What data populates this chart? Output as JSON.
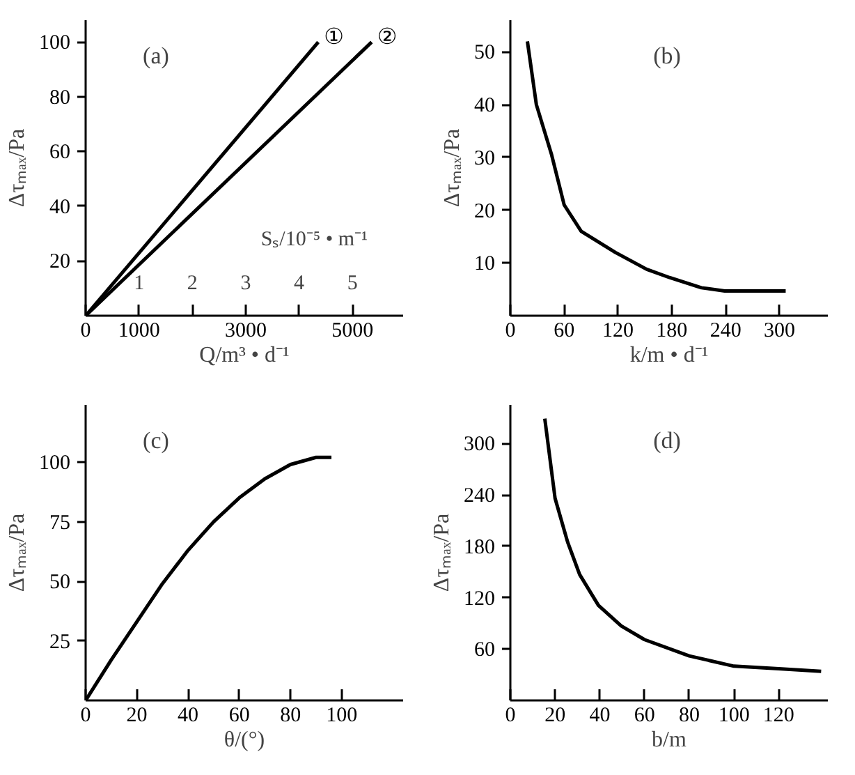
{
  "chart_data": [
    {
      "type": "line",
      "title": "(a)",
      "xlabel": "Q/m³ • d⁻¹",
      "ylabel": "Δτₘₐₓ/Pa",
      "x2label": "Sₛ/10⁻⁵ • m⁻¹",
      "xlim": [
        0,
        5950
      ],
      "ylim": [
        0,
        108
      ],
      "x2lim": [
        0,
        5.95
      ],
      "xticks": [
        0,
        1000,
        {
          "value": 2000,
          "label": null
        },
        3000,
        {
          "value": 4000,
          "label": null
        },
        5000
      ],
      "yticks": [
        20,
        40,
        60,
        80,
        100
      ],
      "x2ticks": [
        1,
        2,
        3,
        4,
        5
      ],
      "series": [
        {
          "name": "①",
          "color": "#000000",
          "x": [
            0,
            4360
          ],
          "values": [
            0,
            100
          ]
        },
        {
          "name": "②",
          "color": "#000000",
          "x": [
            0,
            5360
          ],
          "values": [
            0,
            100
          ]
        }
      ],
      "grid": false
    },
    {
      "type": "line",
      "title": "(b)",
      "xlabel": "k/m • d⁻¹",
      "ylabel": "Δτₘₐₓ/Pa",
      "xlim": [
        0,
        354
      ],
      "ylim": [
        0,
        56
      ],
      "xticks": [
        0,
        60,
        120,
        180,
        240,
        300
      ],
      "yticks": [
        10,
        20,
        30,
        40,
        50
      ],
      "series": [
        {
          "color": "#000000",
          "x": [
            19,
            29,
            46,
            60,
            79,
            117,
            152,
            178,
            213,
            239,
            274,
            307
          ],
          "values": [
            52,
            40,
            30.5,
            21,
            16,
            12,
            8.8,
            7.2,
            5.3,
            4.7,
            4.7,
            4.7
          ]
        }
      ],
      "grid": false
    },
    {
      "type": "line",
      "title": "(c)",
      "xlabel": "θ/(°)",
      "ylabel": "Δτₘₐₓ/Pa",
      "xlim": [
        0,
        124
      ],
      "ylim": [
        0,
        124
      ],
      "xticks": [
        0,
        20,
        40,
        60,
        80,
        100
      ],
      "yticks": [
        25,
        50,
        75,
        100
      ],
      "series": [
        {
          "color": "#000000",
          "x": [
            0,
            10,
            20,
            30,
            40,
            50,
            60,
            70,
            80,
            90,
            96
          ],
          "values": [
            0,
            17,
            33,
            49,
            63,
            75,
            85,
            93,
            99,
            102,
            102
          ]
        }
      ],
      "grid": false
    },
    {
      "type": "line",
      "title": "(d)",
      "xlabel": "b/m",
      "ylabel": "Δτₘₐₓ/Pa",
      "xlim": [
        0,
        142
      ],
      "ylim": [
        0,
        345
      ],
      "xticks": [
        0,
        20,
        40,
        60,
        80,
        100,
        120
      ],
      "yticks": [
        60,
        120,
        180,
        240,
        300
      ],
      "series": [
        {
          "color": "#000000",
          "x": [
            15.4,
            20,
            25.6,
            31,
            39.4,
            49.6,
            60,
            80,
            100,
            120,
            139
          ],
          "values": [
            329,
            236,
            185,
            147,
            111,
            87,
            71,
            52,
            40,
            37,
            34
          ]
        }
      ],
      "grid": false
    }
  ]
}
